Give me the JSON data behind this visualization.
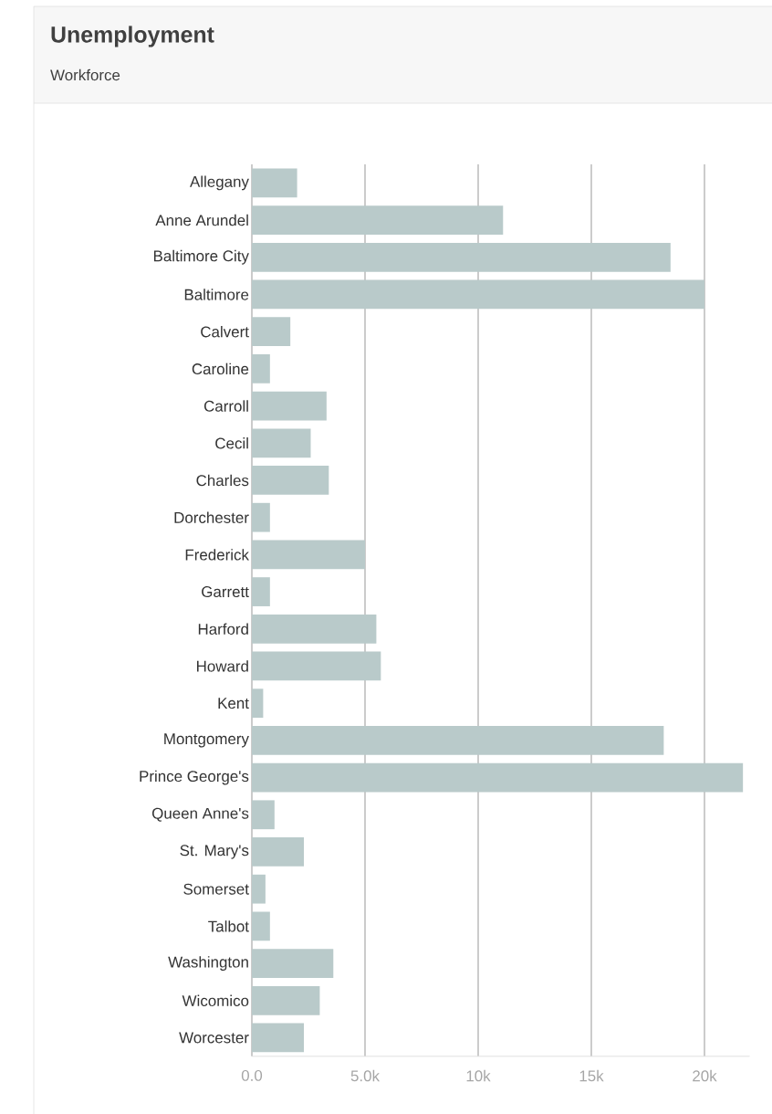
{
  "chart_data": {
    "type": "bar",
    "orientation": "horizontal",
    "title": "Unemployment",
    "subtitle": "Workforce",
    "categories": [
      "Allegany",
      "Anne Arundel",
      "Baltimore City",
      "Baltimore",
      "Calvert",
      "Caroline",
      "Carroll",
      "Cecil",
      "Charles",
      "Dorchester",
      "Frederick",
      "Garrett",
      "Harford",
      "Howard",
      "Kent",
      "Montgomery",
      "Prince George's",
      "Queen Anne's",
      "St. Mary's",
      "Somerset",
      "Talbot",
      "Washington",
      "Wicomico",
      "Worcester"
    ],
    "values": [
      2000,
      11100,
      18500,
      20000,
      1700,
      800,
      3300,
      2600,
      3400,
      800,
      5000,
      800,
      5500,
      5700,
      500,
      18200,
      21700,
      1000,
      2300,
      600,
      800,
      3600,
      3000,
      2300
    ],
    "color": "#b9caca",
    "xlim": [
      0,
      22000
    ],
    "xticks": [
      {
        "value": 0,
        "label": "0.0"
      },
      {
        "value": 5000,
        "label": "5.0k"
      },
      {
        "value": 10000,
        "label": "10k"
      },
      {
        "value": 15000,
        "label": "15k"
      },
      {
        "value": 20000,
        "label": "20k"
      }
    ],
    "grid": "x"
  }
}
